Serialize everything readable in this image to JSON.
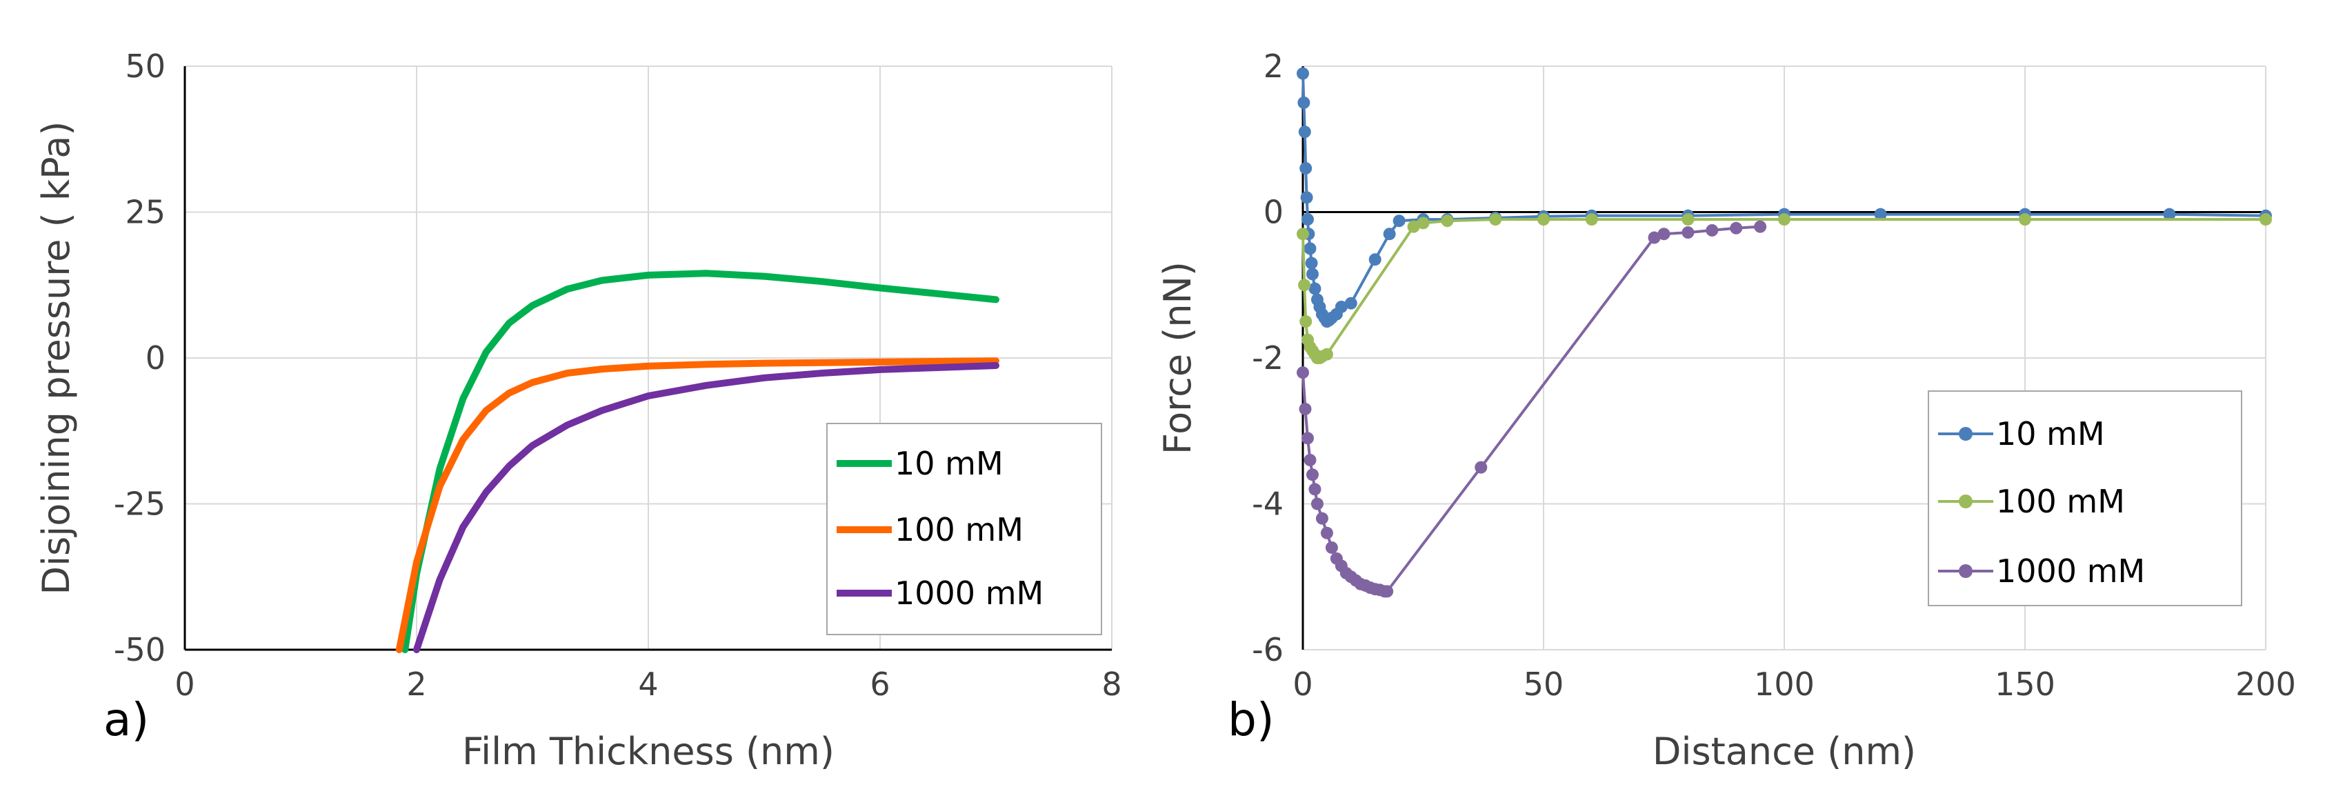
{
  "chart_data": [
    {
      "panel_label": "a)",
      "type": "line",
      "xlabel": "Film Thickness (nm)",
      "ylabel": "Disjoining pressure ( kPa)",
      "xlim": [
        0,
        8
      ],
      "ylim": [
        -50,
        50
      ],
      "xticks": [
        "0",
        "2",
        "4",
        "6",
        "8"
      ],
      "yticks": [
        "50",
        "25",
        "0",
        "-25",
        "-50"
      ],
      "xtick_values": [
        0,
        2,
        4,
        6,
        8
      ],
      "ytick_values": [
        50,
        25,
        0,
        -25,
        -50
      ],
      "grid": true,
      "legend_position": "bottom-right",
      "series": [
        {
          "name": "10 mM",
          "color": "#00b050",
          "x": [
            1.9,
            2.0,
            2.2,
            2.4,
            2.6,
            2.8,
            3.0,
            3.3,
            3.6,
            4.0,
            4.5,
            5.0,
            5.5,
            6.0,
            6.5,
            7.0
          ],
          "y": [
            -50,
            -37,
            -19,
            -7,
            1,
            6,
            9,
            11.8,
            13.3,
            14.2,
            14.5,
            14.0,
            13.1,
            12.0,
            11.0,
            10.0
          ]
        },
        {
          "name": "100 mM",
          "color": "#ff6600",
          "x": [
            1.85,
            2.0,
            2.2,
            2.4,
            2.6,
            2.8,
            3.0,
            3.3,
            3.6,
            4.0,
            4.5,
            5.0,
            6.0,
            7.0
          ],
          "y": [
            -50,
            -35,
            -22,
            -14,
            -9,
            -6,
            -4.2,
            -2.6,
            -1.9,
            -1.4,
            -1.1,
            -0.9,
            -0.7,
            -0.5
          ]
        },
        {
          "name": "1000 mM",
          "color": "#7030a0",
          "x": [
            2.0,
            2.2,
            2.4,
            2.6,
            2.8,
            3.0,
            3.3,
            3.6,
            4.0,
            4.5,
            5.0,
            5.5,
            6.0,
            7.0
          ],
          "y": [
            -50,
            -38,
            -29,
            -23,
            -18.5,
            -15,
            -11.5,
            -9,
            -6.5,
            -4.7,
            -3.4,
            -2.6,
            -2.0,
            -1.3
          ]
        }
      ]
    },
    {
      "panel_label": "b)",
      "type": "line",
      "xlabel": "Distance (nm)",
      "ylabel": "Force (nN)",
      "xlim": [
        0,
        200
      ],
      "ylim": [
        -6,
        2
      ],
      "xticks": [
        "0",
        "50",
        "100",
        "150",
        "200"
      ],
      "yticks": [
        "2",
        "0",
        "-2",
        "-4",
        "-6"
      ],
      "xtick_values": [
        0,
        50,
        100,
        150,
        200
      ],
      "ytick_values": [
        2,
        0,
        -2,
        -4,
        -6
      ],
      "grid": true,
      "legend_position": "bottom-right",
      "series": [
        {
          "name": "10 mM",
          "color": "#4a7ebb",
          "x": [
            0.0,
            0.2,
            0.4,
            0.6,
            0.8,
            1.0,
            1.2,
            1.5,
            1.8,
            2.0,
            2.5,
            3.0,
            3.5,
            4.0,
            4.5,
            5.0,
            5.5,
            6.0,
            7.0,
            8.0,
            10.0,
            15.0,
            18.0,
            20.0,
            25.0,
            30.0,
            40.0,
            50.0,
            60.0,
            80.0,
            100.0,
            120.0,
            150.0,
            180.0,
            200.0
          ],
          "y": [
            1.9,
            1.5,
            1.1,
            0.6,
            0.2,
            -0.1,
            -0.3,
            -0.5,
            -0.7,
            -0.85,
            -1.05,
            -1.2,
            -1.3,
            -1.4,
            -1.45,
            -1.5,
            -1.48,
            -1.45,
            -1.4,
            -1.3,
            -1.25,
            -0.65,
            -0.3,
            -0.12,
            -0.1,
            -0.1,
            -0.08,
            -0.06,
            -0.05,
            -0.05,
            -0.03,
            -0.03,
            -0.03,
            -0.03,
            -0.05
          ]
        },
        {
          "name": "100 mM",
          "color": "#9bbb59",
          "x": [
            0.0,
            0.3,
            0.6,
            1.0,
            1.5,
            2.0,
            2.5,
            3.0,
            3.5,
            4.0,
            5.0,
            23.0,
            25.0,
            30.0,
            40.0,
            50.0,
            60.0,
            80.0,
            100.0,
            150.0,
            200.0
          ],
          "y": [
            -0.3,
            -1.0,
            -1.5,
            -1.75,
            -1.85,
            -1.9,
            -1.95,
            -2.0,
            -2.0,
            -1.98,
            -1.95,
            -0.2,
            -0.15,
            -0.12,
            -0.1,
            -0.1,
            -0.1,
            -0.1,
            -0.1,
            -0.1,
            -0.1
          ]
        },
        {
          "name": "1000 mM",
          "color": "#8064a2",
          "x": [
            0.0,
            0.5,
            1.0,
            1.5,
            2.0,
            2.5,
            3.0,
            4.0,
            5.0,
            6.0,
            7.0,
            8.0,
            9.0,
            10.0,
            11.0,
            12.0,
            13.0,
            14.0,
            15.0,
            16.0,
            17.0,
            17.5,
            37.0,
            73.0,
            75.0,
            80.0,
            85.0,
            90.0,
            95.0
          ],
          "y": [
            -2.2,
            -2.7,
            -3.1,
            -3.4,
            -3.6,
            -3.8,
            -4.0,
            -4.2,
            -4.4,
            -4.6,
            -4.75,
            -4.85,
            -4.95,
            -5.0,
            -5.05,
            -5.1,
            -5.12,
            -5.15,
            -5.17,
            -5.18,
            -5.2,
            -5.2,
            -3.5,
            -0.35,
            -0.3,
            -0.28,
            -0.25,
            -0.22,
            -0.2
          ]
        }
      ]
    }
  ]
}
